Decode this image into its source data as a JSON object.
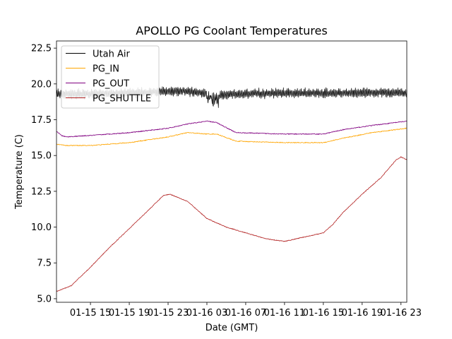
{
  "chart_data": {
    "type": "line",
    "title": "APOLLO PG Coolant Temperatures",
    "xlabel": "Date (GMT)",
    "ylabel": "Temperature (C)",
    "xlim": [
      11.5,
      47.6
    ],
    "ylim": [
      4.75,
      23.0
    ],
    "x_unit": "hours since 2015-01-15 00:00 GMT",
    "yticks": [
      5.0,
      7.5,
      10.0,
      12.5,
      15.0,
      17.5,
      20.0,
      22.5
    ],
    "ytick_labels": [
      "5.0",
      "7.5",
      "10.0",
      "12.5",
      "15.0",
      "17.5",
      "20.0",
      "22.5"
    ],
    "xticks": [
      15,
      19,
      23,
      27,
      31,
      35,
      39,
      43,
      47
    ],
    "xtick_labels": [
      "01-15 15",
      "01-15 19",
      "01-15 23",
      "01-16 03",
      "01-16 07",
      "01-16 11",
      "01-16 15",
      "01-16 19",
      "01-16 23"
    ],
    "legend_position": "top-left",
    "series": [
      {
        "name": "Utah Air",
        "color": "#000000",
        "noise": 0.35,
        "x": [
          11.5,
          15,
          20,
          25,
          28,
          30,
          35,
          40,
          45,
          47.6
        ],
        "y": [
          19.3,
          19.3,
          19.4,
          19.5,
          19.2,
          19.3,
          19.35,
          19.35,
          19.4,
          19.35
        ]
      },
      {
        "name": "PG_IN",
        "color": "#ffa500",
        "noise": 0.06,
        "x": [
          11.5,
          12.5,
          15,
          19,
          23,
          25,
          27,
          28,
          30,
          35,
          39,
          41,
          44,
          47.6
        ],
        "y": [
          15.8,
          15.7,
          15.7,
          15.9,
          16.3,
          16.6,
          16.5,
          16.5,
          16.0,
          15.9,
          15.9,
          16.2,
          16.6,
          16.9
        ]
      },
      {
        "name": "PG_OUT",
        "color": "#800080",
        "noise": 0.06,
        "x": [
          11.5,
          12.0,
          12.5,
          15,
          19,
          23,
          25,
          27,
          28,
          30,
          35,
          39,
          41,
          44,
          47.6
        ],
        "y": [
          16.7,
          16.4,
          16.3,
          16.4,
          16.6,
          16.9,
          17.2,
          17.4,
          17.3,
          16.6,
          16.5,
          16.5,
          16.8,
          17.1,
          17.4
        ]
      },
      {
        "name": "PG_SHUTTLE",
        "color": "#b22222",
        "noise": 0.05,
        "x": [
          11.5,
          13,
          15,
          17,
          19,
          21,
          22.5,
          23.2,
          25,
          27,
          29,
          31,
          33,
          35,
          37,
          39,
          40,
          41,
          43,
          45,
          46.5,
          47,
          47.6
        ],
        "y": [
          5.5,
          5.9,
          7.2,
          8.6,
          9.9,
          11.2,
          12.2,
          12.3,
          11.8,
          10.6,
          10.0,
          9.6,
          9.2,
          9.0,
          9.3,
          9.6,
          10.2,
          11.0,
          12.3,
          13.5,
          14.7,
          14.9,
          14.7
        ]
      }
    ]
  }
}
